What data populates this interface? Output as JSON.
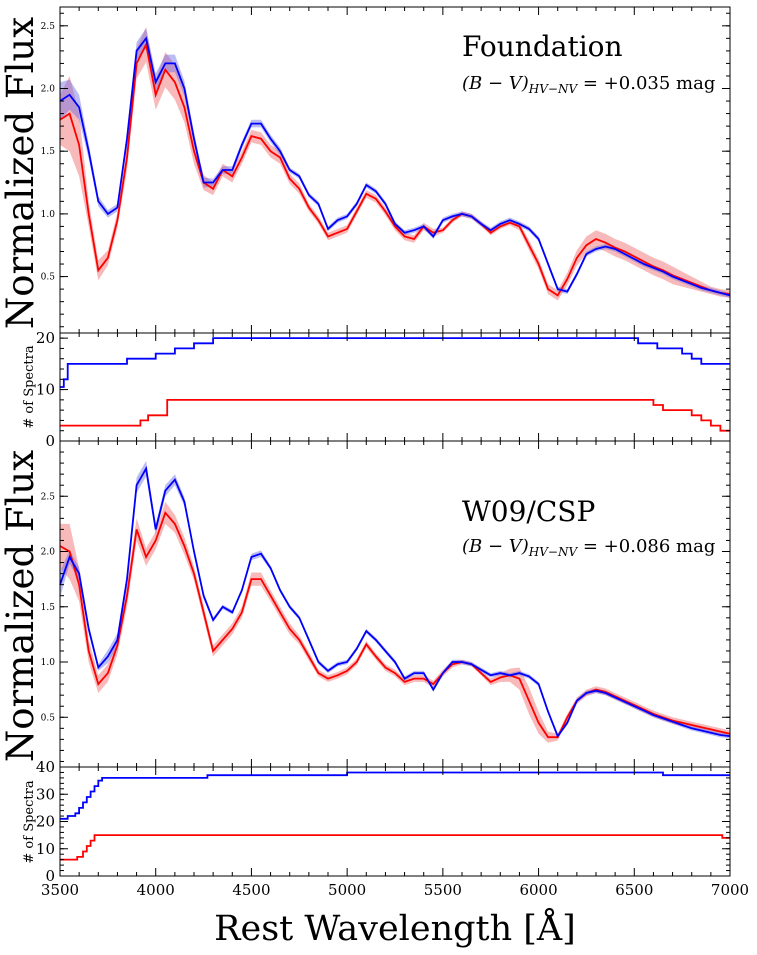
{
  "chart_data": [
    {
      "type": "line",
      "panel": "top-flux",
      "title": "Foundation",
      "annotation_main": "(B − V)",
      "annotation_sub": "HV−NV",
      "annotation_value": " = +0.035 mag",
      "ylabel": "Normalized Flux",
      "xlim": [
        3500,
        7000
      ],
      "ylim": [
        0.05,
        2.65
      ],
      "y_ticks": [
        0.5,
        1.0,
        1.5,
        2.0,
        2.5
      ],
      "y_tick_labels": [
        "0.5",
        "1.0",
        "1.5",
        "2.0",
        "2.5"
      ],
      "x": [
        3500,
        3550,
        3600,
        3650,
        3700,
        3750,
        3800,
        3850,
        3900,
        3950,
        4000,
        4050,
        4100,
        4150,
        4200,
        4250,
        4300,
        4350,
        4400,
        4450,
        4500,
        4550,
        4600,
        4650,
        4700,
        4750,
        4800,
        4850,
        4900,
        4950,
        5000,
        5050,
        5100,
        5150,
        5200,
        5250,
        5300,
        5350,
        5400,
        5450,
        5500,
        5550,
        5600,
        5650,
        5700,
        5750,
        5800,
        5850,
        5900,
        5950,
        6000,
        6050,
        6100,
        6150,
        6200,
        6250,
        6300,
        6350,
        6400,
        6450,
        6500,
        6550,
        6600,
        6650,
        6700,
        6750,
        6800,
        6850,
        6900,
        6950,
        7000
      ],
      "series": [
        {
          "color": "#ff0000",
          "values": [
            1.75,
            1.8,
            1.55,
            1.0,
            0.55,
            0.65,
            0.95,
            1.45,
            2.2,
            2.35,
            1.95,
            2.15,
            2.05,
            1.85,
            1.5,
            1.25,
            1.2,
            1.35,
            1.3,
            1.45,
            1.62,
            1.6,
            1.5,
            1.45,
            1.28,
            1.2,
            1.05,
            0.95,
            0.82,
            0.85,
            0.88,
            1.02,
            1.16,
            1.12,
            1.02,
            0.9,
            0.82,
            0.8,
            0.9,
            0.85,
            0.87,
            0.95,
            1.0,
            0.98,
            0.92,
            0.85,
            0.9,
            0.93,
            0.9,
            0.75,
            0.6,
            0.4,
            0.35,
            0.48,
            0.65,
            0.75,
            0.8,
            0.77,
            0.73,
            0.7,
            0.66,
            0.62,
            0.58,
            0.55,
            0.51,
            0.48,
            0.45,
            0.42,
            0.39,
            0.37,
            0.36
          ],
          "band_width": [
            0.2,
            0.3,
            0.25,
            0.1,
            0.08,
            0.06,
            0.06,
            0.1,
            0.12,
            0.14,
            0.12,
            0.14,
            0.14,
            0.12,
            0.1,
            0.06,
            0.05,
            0.05,
            0.05,
            0.05,
            0.05,
            0.05,
            0.05,
            0.05,
            0.04,
            0.04,
            0.03,
            0.03,
            0.03,
            0.03,
            0.03,
            0.03,
            0.03,
            0.03,
            0.03,
            0.03,
            0.03,
            0.03,
            0.03,
            0.03,
            0.02,
            0.02,
            0.02,
            0.02,
            0.02,
            0.02,
            0.02,
            0.02,
            0.03,
            0.04,
            0.04,
            0.04,
            0.04,
            0.05,
            0.06,
            0.07,
            0.07,
            0.07,
            0.07,
            0.07,
            0.07,
            0.07,
            0.07,
            0.07,
            0.07,
            0.06,
            0.05,
            0.04,
            0.03,
            0.03,
            0.03
          ]
        },
        {
          "color": "#0000ff",
          "values": [
            1.9,
            1.95,
            1.85,
            1.5,
            1.1,
            1.0,
            1.05,
            1.6,
            2.3,
            2.4,
            2.05,
            2.2,
            2.2,
            2.0,
            1.6,
            1.25,
            1.25,
            1.35,
            1.35,
            1.55,
            1.72,
            1.72,
            1.6,
            1.5,
            1.35,
            1.3,
            1.15,
            1.08,
            0.88,
            0.95,
            0.98,
            1.08,
            1.23,
            1.18,
            1.08,
            0.92,
            0.85,
            0.87,
            0.9,
            0.82,
            0.95,
            0.98,
            1.0,
            0.98,
            0.92,
            0.87,
            0.92,
            0.95,
            0.92,
            0.88,
            0.8,
            0.6,
            0.4,
            0.38,
            0.52,
            0.68,
            0.72,
            0.74,
            0.72,
            0.68,
            0.64,
            0.6,
            0.57,
            0.54,
            0.5,
            0.47,
            0.44,
            0.41,
            0.39,
            0.37,
            0.35
          ],
          "band_width": [
            0.15,
            0.12,
            0.1,
            0.06,
            0.04,
            0.03,
            0.03,
            0.05,
            0.07,
            0.08,
            0.07,
            0.07,
            0.07,
            0.06,
            0.05,
            0.04,
            0.03,
            0.03,
            0.03,
            0.03,
            0.03,
            0.03,
            0.03,
            0.03,
            0.02,
            0.02,
            0.02,
            0.02,
            0.02,
            0.02,
            0.02,
            0.02,
            0.02,
            0.02,
            0.02,
            0.02,
            0.02,
            0.02,
            0.02,
            0.02,
            0.02,
            0.02,
            0.02,
            0.02,
            0.02,
            0.02,
            0.02,
            0.02,
            0.02,
            0.02,
            0.02,
            0.02,
            0.02,
            0.02,
            0.02,
            0.02,
            0.02,
            0.02,
            0.02,
            0.02,
            0.02,
            0.02,
            0.02,
            0.02,
            0.02,
            0.02,
            0.02,
            0.02,
            0.02,
            0.02,
            0.02
          ]
        }
      ]
    },
    {
      "type": "line",
      "panel": "top-count",
      "ylabel": "# of Spectra",
      "xlim": [
        3500,
        7000
      ],
      "ylim": [
        0,
        21
      ],
      "y_ticks": [
        0,
        10,
        20
      ],
      "y_tick_labels": [
        "0",
        "10",
        "20"
      ],
      "series": [
        {
          "color": "#0000ff",
          "steps": [
            [
              3500,
              10.5
            ],
            [
              3520,
              12
            ],
            [
              3540,
              15
            ],
            [
              3850,
              16
            ],
            [
              4000,
              17
            ],
            [
              4100,
              18
            ],
            [
              4200,
              19
            ],
            [
              4300,
              20
            ],
            [
              6520,
              19
            ],
            [
              6620,
              18
            ],
            [
              6750,
              17
            ],
            [
              6800,
              16
            ],
            [
              6850,
              15
            ],
            [
              7000,
              15
            ]
          ]
        },
        {
          "color": "#ff0000",
          "steps": [
            [
              3500,
              3
            ],
            [
              3920,
              4
            ],
            [
              3960,
              5
            ],
            [
              4060,
              8
            ],
            [
              6600,
              7
            ],
            [
              6650,
              6
            ],
            [
              6800,
              5
            ],
            [
              6850,
              4
            ],
            [
              6900,
              3
            ],
            [
              6950,
              2
            ],
            [
              7000,
              2
            ]
          ]
        }
      ]
    },
    {
      "type": "line",
      "panel": "bottom-flux",
      "title": "W09/CSP",
      "annotation_main": "(B − V)",
      "annotation_sub": "HV−NV",
      "annotation_value": " = +0.086 mag",
      "ylabel": "Normalized Flux",
      "xlim": [
        3500,
        7000
      ],
      "ylim": [
        0.05,
        3.0
      ],
      "y_ticks": [
        0.5,
        1.0,
        1.5,
        2.0,
        2.5
      ],
      "y_tick_labels": [
        "0.5",
        "1.0",
        "1.5",
        "2.0",
        "2.5"
      ],
      "x": [
        3500,
        3550,
        3600,
        3650,
        3700,
        3750,
        3800,
        3850,
        3900,
        3950,
        4000,
        4050,
        4100,
        4150,
        4200,
        4250,
        4300,
        4350,
        4400,
        4450,
        4500,
        4550,
        4600,
        4650,
        4700,
        4750,
        4800,
        4850,
        4900,
        4950,
        5000,
        5050,
        5100,
        5150,
        5200,
        5250,
        5300,
        5350,
        5400,
        5450,
        5500,
        5550,
        5600,
        5650,
        5700,
        5750,
        5800,
        5850,
        5900,
        5950,
        6000,
        6050,
        6100,
        6150,
        6200,
        6250,
        6300,
        6350,
        6400,
        6450,
        6500,
        6550,
        6600,
        6650,
        6700,
        6750,
        6800,
        6850,
        6900,
        6950,
        7000
      ],
      "series": [
        {
          "color": "#ff0000",
          "values": [
            2.05,
            2.0,
            1.7,
            1.1,
            0.8,
            0.9,
            1.15,
            1.6,
            2.2,
            1.95,
            2.1,
            2.35,
            2.25,
            2.05,
            1.8,
            1.45,
            1.1,
            1.2,
            1.3,
            1.45,
            1.75,
            1.75,
            1.6,
            1.45,
            1.3,
            1.2,
            1.05,
            0.9,
            0.85,
            0.88,
            0.92,
            1.0,
            1.16,
            1.05,
            0.95,
            0.9,
            0.82,
            0.85,
            0.85,
            0.8,
            0.9,
            0.98,
            1.0,
            0.98,
            0.9,
            0.82,
            0.86,
            0.88,
            0.85,
            0.65,
            0.45,
            0.32,
            0.32,
            0.5,
            0.65,
            0.72,
            0.75,
            0.73,
            0.69,
            0.65,
            0.61,
            0.57,
            0.53,
            0.5,
            0.47,
            0.45,
            0.43,
            0.41,
            0.39,
            0.37,
            0.35
          ],
          "band_width": [
            0.2,
            0.25,
            0.15,
            0.1,
            0.08,
            0.08,
            0.08,
            0.1,
            0.1,
            0.08,
            0.08,
            0.1,
            0.08,
            0.08,
            0.06,
            0.06,
            0.05,
            0.05,
            0.05,
            0.05,
            0.06,
            0.06,
            0.05,
            0.05,
            0.05,
            0.04,
            0.04,
            0.03,
            0.03,
            0.03,
            0.03,
            0.03,
            0.03,
            0.03,
            0.03,
            0.03,
            0.03,
            0.03,
            0.03,
            0.03,
            0.03,
            0.03,
            0.02,
            0.02,
            0.02,
            0.03,
            0.04,
            0.06,
            0.1,
            0.12,
            0.1,
            0.05,
            0.03,
            0.03,
            0.03,
            0.03,
            0.03,
            0.03,
            0.03,
            0.03,
            0.03,
            0.03,
            0.03,
            0.03,
            0.03,
            0.03,
            0.03,
            0.03,
            0.03,
            0.03,
            0.03
          ]
        },
        {
          "color": "#0000ff",
          "values": [
            1.7,
            1.95,
            1.8,
            1.3,
            0.95,
            1.05,
            1.2,
            1.75,
            2.6,
            2.75,
            2.2,
            2.55,
            2.65,
            2.45,
            2.0,
            1.6,
            1.38,
            1.5,
            1.45,
            1.65,
            1.95,
            1.98,
            1.85,
            1.65,
            1.5,
            1.4,
            1.2,
            1.0,
            0.92,
            0.98,
            1.0,
            1.12,
            1.28,
            1.2,
            1.1,
            1.0,
            0.85,
            0.9,
            0.9,
            0.75,
            0.9,
            1.0,
            1.0,
            0.98,
            0.93,
            0.88,
            0.9,
            0.88,
            0.9,
            0.87,
            0.8,
            0.55,
            0.33,
            0.45,
            0.65,
            0.72,
            0.74,
            0.72,
            0.68,
            0.64,
            0.6,
            0.56,
            0.52,
            0.49,
            0.46,
            0.43,
            0.4,
            0.38,
            0.36,
            0.34,
            0.33
          ],
          "band_width": [
            0.12,
            0.06,
            0.06,
            0.04,
            0.03,
            0.06,
            0.06,
            0.05,
            0.07,
            0.07,
            0.05,
            0.05,
            0.05,
            0.04,
            0.03,
            0.03,
            0.02,
            0.02,
            0.02,
            0.02,
            0.03,
            0.03,
            0.02,
            0.02,
            0.02,
            0.02,
            0.02,
            0.02,
            0.02,
            0.02,
            0.02,
            0.02,
            0.02,
            0.02,
            0.02,
            0.02,
            0.02,
            0.02,
            0.02,
            0.02,
            0.02,
            0.02,
            0.02,
            0.02,
            0.02,
            0.02,
            0.02,
            0.02,
            0.02,
            0.02,
            0.02,
            0.02,
            0.02,
            0.02,
            0.02,
            0.02,
            0.02,
            0.02,
            0.02,
            0.02,
            0.02,
            0.02,
            0.02,
            0.02,
            0.02,
            0.02,
            0.02,
            0.02,
            0.02,
            0.02,
            0.02
          ]
        }
      ]
    },
    {
      "type": "line",
      "panel": "bottom-count",
      "ylabel": "# of Spectra",
      "xlabel": "Rest Wavelength [Å]",
      "xlim": [
        3500,
        7000
      ],
      "ylim": [
        0,
        40
      ],
      "y_ticks": [
        0,
        10,
        20,
        30,
        40
      ],
      "y_tick_labels": [
        "0",
        "10",
        "20",
        "30",
        "40"
      ],
      "x_ticks": [
        3500,
        4000,
        4500,
        5000,
        5500,
        6000,
        6500,
        7000
      ],
      "x_tick_labels": [
        "3500",
        "4000",
        "4500",
        "5000",
        "5500",
        "6000",
        "6500",
        "7000"
      ],
      "series": [
        {
          "color": "#0000ff",
          "steps": [
            [
              3500,
              21
            ],
            [
              3540,
              22
            ],
            [
              3580,
              23
            ],
            [
              3600,
              25
            ],
            [
              3620,
              27
            ],
            [
              3640,
              29
            ],
            [
              3660,
              31
            ],
            [
              3680,
              33
            ],
            [
              3700,
              35
            ],
            [
              3720,
              36
            ],
            [
              4270,
              37
            ],
            [
              5000,
              38
            ],
            [
              6650,
              37
            ],
            [
              7000,
              37
            ]
          ]
        },
        {
          "color": "#ff0000",
          "steps": [
            [
              3500,
              6
            ],
            [
              3590,
              7
            ],
            [
              3620,
              9
            ],
            [
              3640,
              11
            ],
            [
              3660,
              13
            ],
            [
              3680,
              15
            ],
            [
              6960,
              14
            ],
            [
              7000,
              14
            ]
          ]
        }
      ]
    }
  ]
}
